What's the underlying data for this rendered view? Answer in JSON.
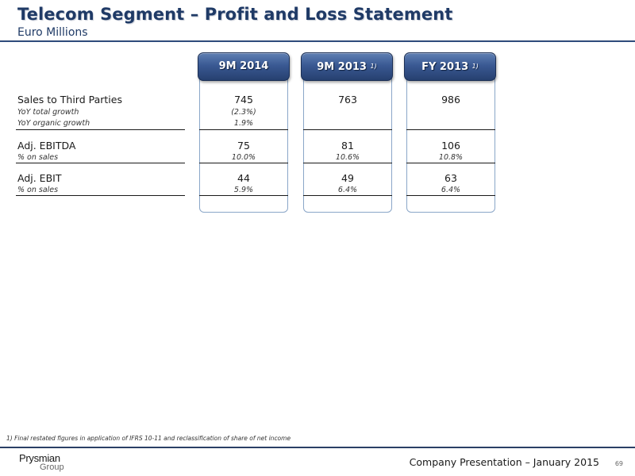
{
  "header": {
    "title": "Telecom Segment – Profit and Loss Statement",
    "subtitle": "Euro Millions"
  },
  "columns": [
    {
      "label": "9M 2014",
      "note": ""
    },
    {
      "label": "9M 2013",
      "note": "1)"
    },
    {
      "label": "FY 2013",
      "note": "1)"
    }
  ],
  "rows": {
    "sales": {
      "label": "Sales to Third Parties",
      "values": [
        "745",
        "763",
        "986"
      ]
    },
    "yoy_total": {
      "label": "YoY total growth",
      "values": [
        "(2.3%)",
        "",
        ""
      ]
    },
    "yoy_organic": {
      "label": "YoY organic growth",
      "values": [
        "1.9%",
        "",
        ""
      ]
    },
    "ebitda": {
      "label": "Adj. EBITDA",
      "values": [
        "75",
        "81",
        "106"
      ]
    },
    "ebitda_pct": {
      "label": "% on sales",
      "values": [
        "10.0%",
        "10.6%",
        "10.8%"
      ]
    },
    "ebit": {
      "label": "Adj. EBIT",
      "values": [
        "44",
        "49",
        "63"
      ]
    },
    "ebit_pct": {
      "label": "% on sales",
      "values": [
        "5.9%",
        "6.4%",
        "6.4%"
      ]
    }
  },
  "footnote": "1) Final restated figures in application of IFRS 10-11 and reclassification of share of net income",
  "footer": {
    "logo_line1": "Prysmian",
    "logo_line2": "Group",
    "presentation": "Company Presentation – January 2015",
    "page_number": "69"
  }
}
